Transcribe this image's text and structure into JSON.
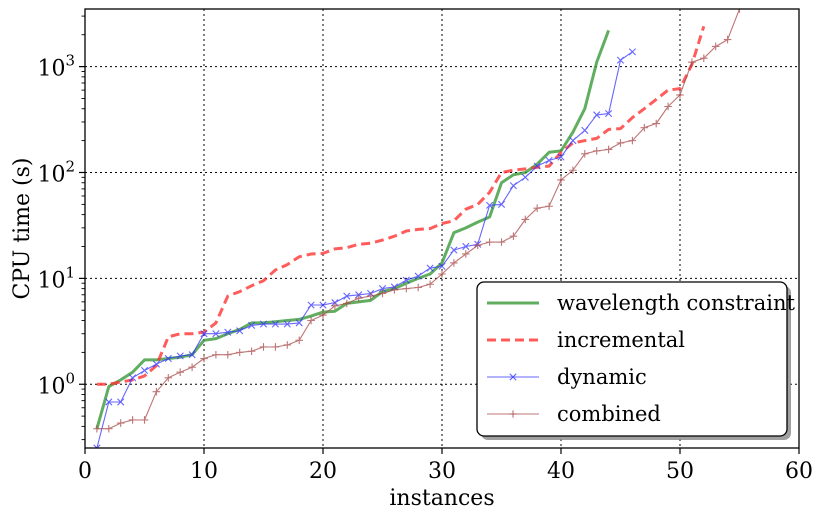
{
  "chart_data": {
    "type": "line",
    "xlabel": "instances",
    "ylabel": "CPU time (s)",
    "xlim": [
      0,
      60
    ],
    "ylim": [
      0.25,
      3500
    ],
    "yscale": "log",
    "grid": true,
    "legend": "bottom-right",
    "x_ticks": [
      "0",
      "10",
      "20",
      "30",
      "40",
      "50",
      "60"
    ],
    "y_ticks": [
      {
        "value": 1,
        "base": "10",
        "exp": "0"
      },
      {
        "value": 10,
        "base": "10",
        "exp": "1"
      },
      {
        "value": 100,
        "base": "10",
        "exp": "2"
      },
      {
        "value": 1000,
        "base": "10",
        "exp": "3"
      }
    ],
    "series": [
      {
        "name": "wavelength constraint",
        "color": "#3a9a3a",
        "style": "solid",
        "x": [
          1,
          2,
          3,
          4,
          5,
          6,
          7,
          8,
          9,
          10,
          11,
          12,
          13,
          14,
          15,
          16,
          17,
          18,
          19,
          20,
          21,
          22,
          23,
          24,
          25,
          26,
          27,
          28,
          29,
          30,
          31,
          32,
          33,
          34,
          35,
          36,
          37,
          38,
          39,
          40,
          41,
          42,
          43,
          44
        ],
        "y": [
          0.38,
          0.95,
          1.1,
          1.3,
          1.7,
          1.7,
          1.75,
          1.8,
          1.9,
          2.6,
          2.7,
          3.0,
          3.3,
          3.8,
          3.8,
          3.9,
          4.0,
          4.1,
          4.4,
          4.8,
          4.9,
          5.8,
          6.0,
          6.2,
          7.5,
          8.0,
          9.0,
          10.0,
          11.0,
          14.0,
          27.0,
          30.0,
          34.0,
          38.0,
          80.0,
          95.0,
          100.0,
          120.0,
          155.0,
          160.0,
          240.0,
          400.0,
          1100.0,
          2200.0
        ]
      },
      {
        "name": "incremental",
        "color": "#ff3333",
        "style": "dashed",
        "x": [
          1,
          2,
          3,
          4,
          5,
          6,
          7,
          8,
          9,
          10,
          11,
          12,
          13,
          14,
          15,
          16,
          17,
          18,
          19,
          20,
          21,
          22,
          23,
          24,
          25,
          26,
          27,
          28,
          29,
          30,
          31,
          32,
          33,
          34,
          35,
          36,
          37,
          38,
          39,
          40,
          41,
          42,
          43,
          44,
          45,
          46,
          47,
          48,
          49,
          50,
          51,
          52
        ],
        "y": [
          1.0,
          1.0,
          1.05,
          1.1,
          1.2,
          1.5,
          2.8,
          3.0,
          3.0,
          3.1,
          3.8,
          6.8,
          7.5,
          8.5,
          9.5,
          12.0,
          13.5,
          16.0,
          17.0,
          17.2,
          19.0,
          19.5,
          21.0,
          21.5,
          23.0,
          25.0,
          28.0,
          29.0,
          29.5,
          33.0,
          35.0,
          45.0,
          50.0,
          65.0,
          100.0,
          105.0,
          108.0,
          112.0,
          115.0,
          155.0,
          190.0,
          200.0,
          210.0,
          255.0,
          260.0,
          330.0,
          400.0,
          490.0,
          600.0,
          620.0,
          1050.0,
          2400.0
        ]
      },
      {
        "name": "dynamic",
        "color": "#3333ff",
        "style": "solid",
        "marker": "x",
        "x": [
          1,
          2,
          3,
          4,
          5,
          6,
          7,
          8,
          9,
          10,
          11,
          12,
          13,
          14,
          15,
          16,
          17,
          18,
          19,
          20,
          21,
          22,
          23,
          24,
          25,
          26,
          27,
          28,
          29,
          30,
          31,
          32,
          33,
          34,
          35,
          36,
          37,
          38,
          39,
          40,
          41,
          42,
          43,
          44,
          45,
          46
        ],
        "y": [
          0.25,
          0.68,
          0.68,
          1.15,
          1.35,
          1.55,
          1.75,
          1.85,
          1.9,
          3.0,
          3.0,
          3.1,
          3.2,
          3.6,
          3.7,
          3.7,
          3.7,
          3.8,
          5.6,
          5.6,
          5.9,
          6.8,
          7.0,
          7.2,
          8.0,
          8.3,
          9.6,
          10.5,
          12.5,
          13.0,
          18.5,
          20.0,
          21.0,
          49.0,
          50.0,
          75.0,
          90.0,
          115.0,
          130.0,
          140.0,
          200.0,
          250.0,
          350.0,
          360.0,
          1150.0,
          1380.0
        ]
      },
      {
        "name": "combined",
        "color": "#a84848",
        "style": "solid",
        "marker": "+",
        "x": [
          1,
          2,
          3,
          4,
          5,
          6,
          7,
          8,
          9,
          10,
          11,
          12,
          13,
          14,
          15,
          16,
          17,
          18,
          19,
          20,
          21,
          22,
          23,
          24,
          25,
          26,
          27,
          28,
          29,
          30,
          31,
          32,
          33,
          34,
          35,
          36,
          37,
          38,
          39,
          40,
          41,
          42,
          43,
          44,
          45,
          46,
          47,
          48,
          49,
          50,
          51,
          52,
          53,
          54,
          55
        ],
        "y": [
          0.38,
          0.38,
          0.43,
          0.46,
          0.46,
          0.85,
          1.15,
          1.3,
          1.45,
          1.75,
          1.9,
          1.9,
          2.0,
          2.05,
          2.25,
          2.25,
          2.35,
          2.6,
          4.0,
          4.5,
          5.5,
          5.8,
          6.5,
          6.8,
          7.2,
          7.8,
          8.0,
          8.2,
          8.8,
          11.0,
          14.0,
          17.0,
          20.5,
          22.0,
          22.0,
          25.0,
          36.0,
          46.0,
          48.0,
          85.0,
          105.0,
          150.0,
          160.0,
          165.0,
          190.0,
          200.0,
          265.0,
          290.0,
          420.0,
          540.0,
          1100.0,
          1200.0,
          1550.0,
          1800.0,
          3500.0
        ]
      }
    ]
  }
}
